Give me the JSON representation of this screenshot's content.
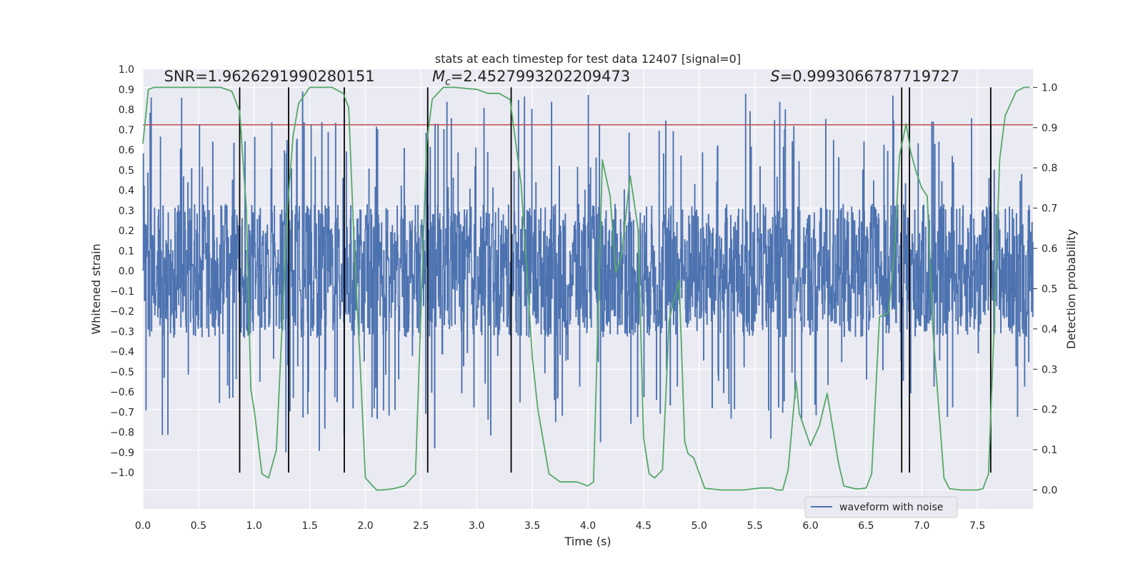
{
  "chart_data": {
    "type": "line",
    "title": "stats at each timestep for test data 12407 [signal=0]",
    "xlabel": "Time (s)",
    "ylabel": "Whitened strain",
    "y2label": "Detection probability",
    "xlim": [
      0,
      8.0
    ],
    "ylim": [
      -1.18,
      1.0
    ],
    "y2lim": [
      -0.047,
      1.045
    ],
    "x_ticks": [
      0.0,
      0.5,
      1.0,
      1.5,
      2.0,
      2.5,
      3.0,
      3.5,
      4.0,
      4.5,
      5.0,
      5.5,
      6.0,
      6.5,
      7.0,
      7.5
    ],
    "x_tick_labels": [
      "0.0",
      "0.5",
      "1.0",
      "1.5",
      "2.0",
      "2.5",
      "3.0",
      "3.5",
      "4.0",
      "4.5",
      "5.0",
      "5.5",
      "6.0",
      "6.5",
      "7.0",
      "7.5"
    ],
    "y_ticks": [
      1.0,
      0.9,
      0.8,
      0.7,
      0.6,
      0.5,
      0.4,
      0.3,
      0.2,
      0.1,
      0.0,
      -0.1,
      -0.2,
      -0.3,
      -0.4,
      -0.5,
      -0.6,
      -0.7,
      -0.8,
      -0.9,
      -1.0
    ],
    "y_tick_labels": [
      "1.0",
      "0.9",
      "0.8",
      "0.7",
      "0.6",
      "0.5",
      "0.4",
      "0.3",
      "0.2",
      "0.1",
      "0.0",
      "−0.1",
      "−0.2",
      "−0.3",
      "−0.4",
      "−0.5",
      "−0.6",
      "−0.7",
      "−0.8",
      "−0.9",
      "−1.0"
    ],
    "y2_ticks": [
      1.0,
      0.9,
      0.8,
      0.7,
      0.6,
      0.5,
      0.4,
      0.3,
      0.2,
      0.1,
      0.0
    ],
    "y2_tick_labels": [
      "1.0",
      "0.9",
      "0.8",
      "0.7",
      "0.6",
      "0.5",
      "0.4",
      "0.3",
      "0.2",
      "0.1",
      "0.0"
    ],
    "grid": true,
    "legend_position": "lower-right",
    "series": [
      {
        "name": "waveform with noise",
        "axis": "left",
        "color": "#4c72b0",
        "style": "dense noise, baseline amplitude about ±0.33 with frequent spikes to ±0.6–0.9"
      },
      {
        "axis": "right",
        "color": "#55a868",
        "x": [
          0.0,
          0.05,
          0.1,
          0.3,
          0.5,
          0.7,
          0.8,
          0.87,
          0.93,
          0.97,
          1.0,
          1.07,
          1.13,
          1.2,
          1.3,
          1.35,
          1.4,
          1.5,
          1.7,
          1.8,
          1.85,
          1.9,
          1.95,
          2.0,
          2.1,
          2.15,
          2.25,
          2.35,
          2.45,
          2.55,
          2.6,
          2.7,
          2.8,
          3.0,
          3.1,
          3.2,
          3.3,
          3.4,
          3.5,
          3.55,
          3.65,
          3.75,
          3.9,
          4.0,
          4.05,
          4.13,
          4.2,
          4.25,
          4.3,
          4.38,
          4.45,
          4.5,
          4.55,
          4.6,
          4.67,
          4.73,
          4.77,
          4.82,
          4.87,
          4.9,
          4.95,
          5.05,
          5.2,
          5.4,
          5.55,
          5.65,
          5.7,
          5.75,
          5.8,
          5.87,
          5.9,
          6.0,
          6.08,
          6.15,
          6.25,
          6.3,
          6.4,
          6.45,
          6.5,
          6.55,
          6.62,
          6.7,
          6.75,
          6.8,
          6.86,
          6.9,
          6.95,
          7.0,
          7.05,
          7.1,
          7.2,
          7.25,
          7.35,
          7.5,
          7.55,
          7.6,
          7.65,
          7.7,
          7.75,
          7.85,
          7.92,
          7.97
        ],
        "values": [
          0.86,
          0.995,
          1.0,
          1.0,
          1.0,
          1.0,
          0.99,
          0.94,
          0.7,
          0.25,
          0.2,
          0.04,
          0.03,
          0.1,
          0.7,
          0.88,
          0.96,
          1.0,
          1.0,
          0.985,
          0.95,
          0.6,
          0.33,
          0.03,
          0.0,
          0.0,
          0.003,
          0.01,
          0.04,
          0.86,
          0.97,
          1.0,
          1.0,
          0.995,
          0.985,
          0.985,
          0.97,
          0.76,
          0.33,
          0.2,
          0.04,
          0.02,
          0.02,
          0.01,
          0.02,
          0.82,
          0.73,
          0.54,
          0.58,
          0.78,
          0.65,
          0.13,
          0.04,
          0.03,
          0.05,
          0.42,
          0.47,
          0.52,
          0.12,
          0.09,
          0.08,
          0.004,
          0.0,
          0.0,
          0.005,
          0.005,
          0.0,
          0.0,
          0.05,
          0.27,
          0.19,
          0.11,
          0.16,
          0.24,
          0.07,
          0.01,
          0.003,
          0.003,
          0.005,
          0.04,
          0.43,
          0.44,
          0.57,
          0.83,
          0.91,
          0.84,
          0.79,
          0.75,
          0.73,
          0.4,
          0.03,
          0.003,
          0.0,
          0.0,
          0.003,
          0.04,
          0.4,
          0.82,
          0.93,
          0.99,
          1.0,
          1.0
        ]
      },
      {
        "axis": "left",
        "color": "#c44e52",
        "kind": "horizontal-line",
        "y": 0.725
      },
      {
        "axis": "left",
        "color": "#000000",
        "kind": "vertical-lines",
        "x": [
          0.87,
          1.31,
          1.81,
          2.56,
          3.31,
          6.82,
          6.89,
          7.62
        ],
        "ymin": -1.0,
        "ymax": 0.91
      }
    ],
    "annotations": [
      {
        "prefix": "SNR",
        "text": "SNR=1.9626291990280151",
        "x": 0.19,
        "y": 0.94
      },
      {
        "prefix": "Mc",
        "text": "=2.4527993202209473",
        "x": 2.6,
        "y": 0.94
      },
      {
        "prefix": "S",
        "text": "=0.9993066787719727",
        "x": 5.64,
        "y": 0.94
      }
    ]
  }
}
